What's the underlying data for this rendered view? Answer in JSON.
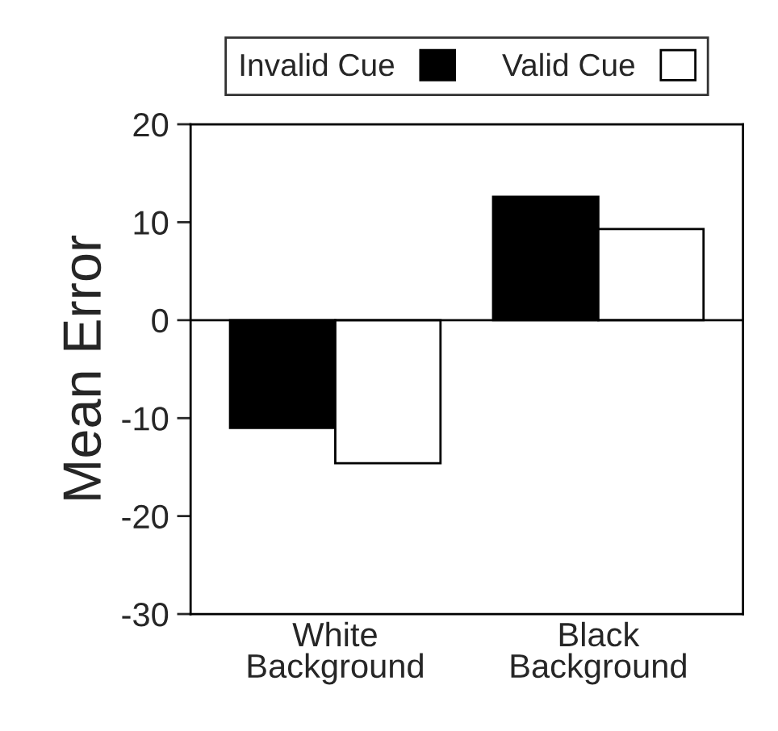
{
  "chart_data": {
    "type": "bar",
    "ylabel": "Mean Error",
    "categories": [
      "White\nBackground",
      "Black\nBackground"
    ],
    "series": [
      {
        "name": "Invalid Cue",
        "color": "#000000",
        "values": [
          -11,
          12.6
        ]
      },
      {
        "name": "Valid Cue",
        "color": "#ffffff",
        "values": [
          -14.6,
          9.3
        ]
      }
    ],
    "ylim": [
      -30,
      20
    ],
    "yticks": [
      -30,
      -20,
      -10,
      0,
      10,
      20
    ],
    "ref_lines": [
      {
        "axis": "y",
        "value": 0,
        "color": "#000000"
      }
    ],
    "legend": "top",
    "grid": false
  }
}
